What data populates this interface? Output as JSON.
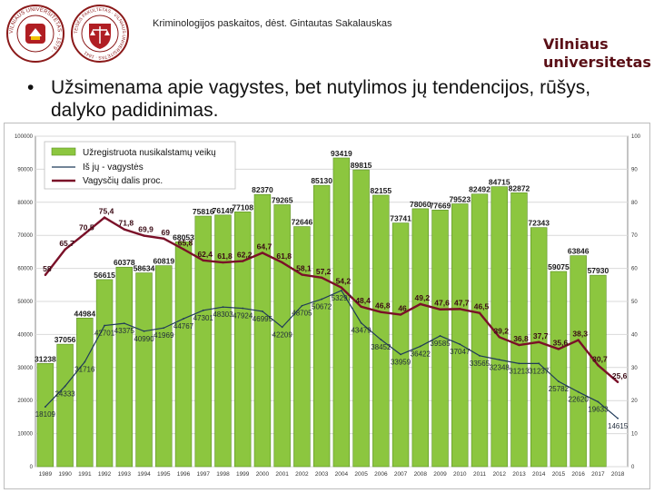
{
  "header": {
    "caption": "Kriminologijos paskaitos, dėst. Gintautas Sakalauskas",
    "brand_line1": "Vilniaus",
    "brand_line2": "universitetas",
    "logo1_text": "VILNIAUS UNIVERSITETAS · 1579 ·",
    "logo2_text": "TEISĖS FAKULTETAS · VILNIAUS UNIVERSITETAS · 1641"
  },
  "bullet": {
    "dot": "•",
    "text": "Užsimenama apie vagystes, bet nutylimos jų tendencijos, rūšys, dalyko padidinimas."
  },
  "colors": {
    "bar": "#8cc63f",
    "bar_edge": "#5a8f22",
    "theft_line": "#1f3a5a",
    "share_line": "#7a1028",
    "brand": "#5a0f16"
  },
  "chart_data": {
    "type": "bar",
    "title": "",
    "categories": [
      "1989",
      "1990",
      "1991",
      "1992",
      "1993",
      "1994",
      "1995",
      "1996",
      "1997",
      "1998",
      "1999",
      "2000",
      "2001",
      "2002",
      "2003",
      "2004",
      "2005",
      "2006",
      "2007",
      "2008",
      "2009",
      "2010",
      "2011",
      "2012",
      "2013",
      "2014",
      "2015",
      "2016",
      "2017",
      "2018"
    ],
    "series": [
      {
        "name": "Užregistruota nusikalstamų veikų",
        "kind": "bar",
        "axis": "left",
        "values": [
          31238,
          37056,
          44984,
          56615,
          60378,
          58634,
          60819,
          68053,
          75816,
          76149,
          77108,
          82370,
          79265,
          72646,
          85130,
          93419,
          89815,
          82155,
          73741,
          78060,
          77669,
          79523,
          82492,
          84715,
          82872,
          72343,
          59075,
          63846,
          57930,
          null
        ],
        "labels": [
          "31238",
          "37056",
          "44984",
          "56615",
          "60378",
          "58634",
          "60819",
          "68053",
          "75816",
          "76149",
          "77108",
          "82370",
          "79265",
          "72646",
          "85130",
          "93419",
          "89815",
          "82155",
          "73741",
          "78060",
          "77669",
          "79523",
          "82492",
          "84715",
          "82872",
          "72343",
          "59075",
          "63846",
          "57930",
          ""
        ]
      },
      {
        "name": "Iš jų - vagystės",
        "kind": "line",
        "axis": "left",
        "values": [
          18109,
          24333,
          31716,
          42701,
          43375,
          40990,
          41969,
          44767,
          47301,
          48303,
          47924,
          46995,
          42209,
          48705,
          50672,
          53297,
          43479,
          38452,
          33959,
          36422,
          39585,
          37047,
          33565,
          32348,
          31213,
          31237,
          25782,
          22620,
          19633,
          14615
        ],
        "labels": [
          "18109",
          "24333",
          "31716",
          "42701",
          "43375",
          "40990",
          "41969",
          "44767",
          "47301",
          "48303",
          "47924",
          "46995",
          "42209",
          "48705",
          "50672",
          "53297",
          "43479",
          "38452",
          "33959",
          "36422",
          "39585",
          "37047",
          "33565",
          "32348",
          "31213",
          "31237",
          "25782",
          "22620",
          "19633",
          "14615"
        ]
      },
      {
        "name": "Vagysčių dalis proc.",
        "kind": "line",
        "axis": "right",
        "values": [
          58,
          65.7,
          70.5,
          75.4,
          71.8,
          69.9,
          69,
          65.8,
          62.4,
          61.8,
          62.2,
          64.7,
          61.8,
          58.1,
          57.2,
          54.2,
          48.4,
          46.8,
          46,
          49.2,
          47.6,
          47.7,
          46.5,
          39.2,
          36.8,
          37.7,
          35.6,
          38.3,
          30.7,
          25.6
        ],
        "labels": [
          "58",
          "65,7",
          "70,5",
          "75,4",
          "71,8",
          "69,9",
          "69",
          "65,8",
          "62,4",
          "61,8",
          "62,2",
          "64,7",
          "61,8",
          "58,1",
          "57,2",
          "54,2",
          "48,4",
          "46,8",
          "46",
          "49,2",
          "47,6",
          "47,7",
          "46,5",
          "39,2",
          "36,8",
          "37,7",
          "35,6",
          "38,3",
          "30,7",
          "25,6"
        ]
      }
    ],
    "left_axis": {
      "min": 0,
      "max": 100000,
      "ticks": [
        "0",
        "10000",
        "20000",
        "30000",
        "40000",
        "50000",
        "60000",
        "70000",
        "80000",
        "90000",
        "100000"
      ]
    },
    "right_axis": {
      "min": 0,
      "max": 100,
      "ticks": [
        "0",
        "10",
        "20",
        "30",
        "40",
        "50",
        "60",
        "70",
        "80",
        "90",
        "100"
      ]
    },
    "legend": {
      "position": "top-left",
      "items": [
        "Užregistruota nusikalstamų veikų",
        "Iš jų - vagystės",
        "Vagysčių dalis proc."
      ]
    },
    "grid": true
  }
}
